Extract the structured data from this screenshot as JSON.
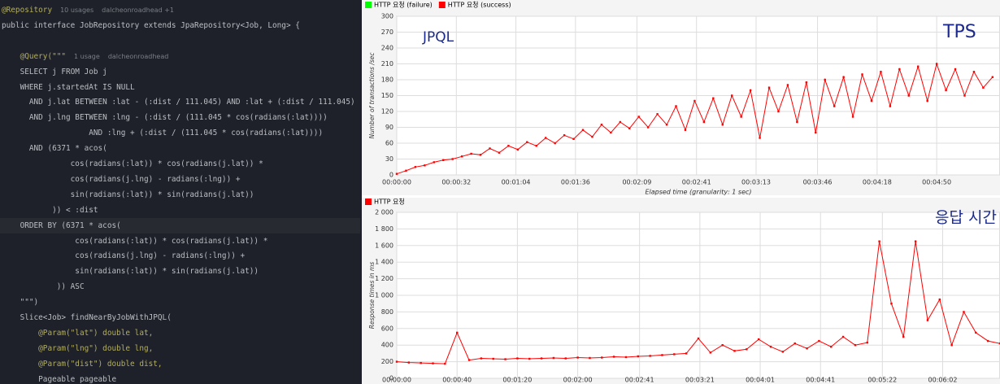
{
  "editor": {
    "lines": [
      {
        "text": "@Repository",
        "hints": [
          "10 usages",
          "dalcheonroadhead +1"
        ]
      },
      {
        "text": "public interface JobRepository extends JpaRepository<Job, Long> {"
      },
      {
        "text": ""
      },
      {
        "text": "    @Query(\"\"\"",
        "hints": [
          "1 usage",
          "dalcheonroadhead"
        ]
      },
      {
        "text": "    SELECT j FROM Job j"
      },
      {
        "text": "    WHERE j.startedAt IS NULL"
      },
      {
        "text": "      AND j.lat BETWEEN :lat - (:dist / 111.045) AND :lat + (:dist / 111.045)"
      },
      {
        "text": "      AND j.lng BETWEEN :lng - (:dist / (111.045 * cos(radians(:lat))))"
      },
      {
        "text": "                   AND :lng + (:dist / (111.045 * cos(radians(:lat))))"
      },
      {
        "text": "      AND (6371 * acos("
      },
      {
        "text": "               cos(radians(:lat)) * cos(radians(j.lat)) *"
      },
      {
        "text": "               cos(radians(j.lng) - radians(:lng)) +"
      },
      {
        "text": "               sin(radians(:lat)) * sin(radians(j.lat))"
      },
      {
        "text": "           )) < :dist"
      },
      {
        "text": "    ORDER BY (6371 * acos(",
        "highlight": true
      },
      {
        "text": "                cos(radians(:lat)) * cos(radians(j.lat)) *"
      },
      {
        "text": "                cos(radians(j.lng) - radians(:lng)) +"
      },
      {
        "text": "                sin(radians(:lat)) * sin(radians(j.lat))"
      },
      {
        "text": "            )) ASC"
      },
      {
        "text": "    \"\"\")"
      },
      {
        "text": "    Slice<Job> findNearByJobWithJPQL("
      },
      {
        "text": "        @Param(\"lat\") double lat,"
      },
      {
        "text": "        @Param(\"lng\") double lng,"
      },
      {
        "text": "        @Param(\"dist\") double dist,"
      },
      {
        "text": "        Pageable pageable"
      }
    ]
  },
  "chart_data": [
    {
      "type": "line",
      "annotations": [
        "JPQL",
        "TPS"
      ],
      "y_label": "Number of transactions /sec",
      "x_label": "Elapsed time (granularity: 1 sec)",
      "x": [
        0,
        5,
        10,
        15,
        20,
        25,
        30,
        35,
        40,
        45,
        50,
        55,
        60,
        65,
        70,
        75,
        80,
        85,
        90,
        95,
        100,
        105,
        110,
        115,
        120,
        125,
        130,
        135,
        140,
        145,
        150,
        155,
        160,
        165,
        170,
        175,
        180,
        185,
        190,
        195,
        200,
        205,
        210,
        215,
        220,
        225,
        230,
        235,
        240,
        245,
        250,
        255,
        260,
        265,
        270,
        275,
        280,
        285,
        290,
        295,
        300,
        305,
        310,
        315,
        320
      ],
      "series": [
        {
          "name": "HTTP 요청 (failure)",
          "color": "#00ff00",
          "values": [
            null,
            null,
            null,
            null,
            null,
            null,
            null,
            null,
            null,
            null,
            null,
            null,
            null,
            null,
            null,
            null,
            null,
            null,
            null,
            null,
            null,
            null,
            null,
            null,
            null,
            null,
            null,
            null,
            null,
            null,
            null,
            null,
            null,
            null,
            null,
            null,
            null,
            null,
            null,
            null,
            null,
            null,
            null,
            null,
            null,
            null,
            null,
            null,
            null,
            null,
            null,
            null,
            null,
            null,
            null,
            null,
            null,
            null,
            null,
            null,
            null,
            null,
            null,
            null,
            null
          ]
        },
        {
          "name": "HTTP 요청 (success)",
          "color": "#ff0000",
          "values": [
            2,
            8,
            15,
            18,
            24,
            28,
            30,
            35,
            40,
            38,
            50,
            42,
            55,
            48,
            62,
            55,
            70,
            60,
            75,
            68,
            85,
            72,
            95,
            80,
            100,
            88,
            110,
            90,
            115,
            95,
            130,
            85,
            140,
            100,
            145,
            95,
            150,
            110,
            160,
            70,
            165,
            120,
            170,
            100,
            175,
            80,
            180,
            130,
            185,
            110,
            190,
            140,
            195,
            130,
            200,
            150,
            205,
            140,
            210,
            160,
            200,
            150,
            195,
            165,
            185
          ]
        }
      ],
      "xlim": [
        0,
        324
      ],
      "xticks": [
        {
          "value": 0,
          "label": "00:00:00"
        },
        {
          "value": 32,
          "label": "00:00:32"
        },
        {
          "value": 64,
          "label": "00:01:04"
        },
        {
          "value": 96,
          "label": "00:01:36"
        },
        {
          "value": 129,
          "label": "00:02:09"
        },
        {
          "value": 161,
          "label": "00:02:41"
        },
        {
          "value": 193,
          "label": "00:03:13"
        },
        {
          "value": 226,
          "label": "00:03:46"
        },
        {
          "value": 258,
          "label": "00:04:18"
        },
        {
          "value": 290,
          "label": "00:04:50"
        }
      ],
      "ylim": [
        0,
        300
      ],
      "yticks": [
        0,
        30,
        60,
        90,
        120,
        150,
        180,
        210,
        240,
        270,
        300
      ],
      "grid": true
    },
    {
      "type": "line",
      "annotations": [
        "응답 시간"
      ],
      "y_label": "Response times in ms",
      "x": [
        0,
        8,
        16,
        24,
        32,
        40,
        48,
        56,
        64,
        72,
        80,
        88,
        96,
        104,
        112,
        120,
        128,
        136,
        144,
        152,
        160,
        168,
        176,
        184,
        192,
        200,
        208,
        216,
        224,
        232,
        240,
        248,
        256,
        264,
        272,
        280,
        288,
        296,
        304,
        312,
        320,
        328,
        336,
        344,
        352,
        360,
        368,
        376,
        384,
        392,
        400
      ],
      "series": [
        {
          "name": "HTTP 요청",
          "color": "#ff0000",
          "values": [
            200,
            190,
            185,
            180,
            175,
            550,
            220,
            240,
            235,
            230,
            240,
            235,
            240,
            245,
            240,
            250,
            245,
            250,
            260,
            255,
            265,
            270,
            280,
            290,
            300,
            480,
            310,
            400,
            330,
            350,
            470,
            380,
            320,
            420,
            360,
            450,
            380,
            500,
            400,
            430,
            1650,
            900,
            500,
            1650,
            700,
            950,
            400,
            800,
            550,
            450,
            420
          ]
        }
      ],
      "xlim": [
        0,
        400
      ],
      "xticks": [
        {
          "value": 0,
          "label": "00:00:00"
        },
        {
          "value": 40,
          "label": "00:00:40"
        },
        {
          "value": 80,
          "label": "00:01:20"
        },
        {
          "value": 120,
          "label": "00:02:00"
        },
        {
          "value": 161,
          "label": "00:02:41"
        },
        {
          "value": 201,
          "label": "00:03:21"
        },
        {
          "value": 241,
          "label": "00:04:01"
        },
        {
          "value": 281,
          "label": "00:04:41"
        },
        {
          "value": 322,
          "label": "00:05:22"
        },
        {
          "value": 362,
          "label": "00:06:02"
        }
      ],
      "ylim": [
        0,
        2000
      ],
      "yticks": [
        0,
        200,
        400,
        600,
        800,
        {
          "value": 1000,
          "label": "1 000"
        },
        {
          "value": 1200,
          "label": "1 200"
        },
        {
          "value": 1400,
          "label": "1 400"
        },
        {
          "value": 1600,
          "label": "1 600"
        },
        {
          "value": 1800,
          "label": "1 800"
        },
        {
          "value": 2000,
          "label": "2 000"
        }
      ],
      "grid": true
    }
  ]
}
